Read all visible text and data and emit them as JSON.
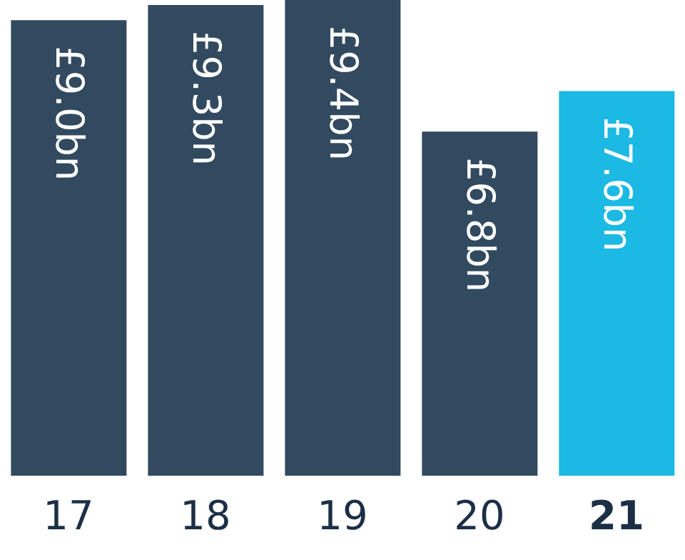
{
  "chart_data": {
    "type": "bar",
    "categories": [
      "17",
      "18",
      "19",
      "20",
      "21"
    ],
    "values": [
      9.0,
      9.3,
      9.4,
      6.8,
      7.6
    ],
    "colors": [
      "#324a5f",
      "#324a5f",
      "#324a5f",
      "#324a5f",
      "#1bb9e3"
    ],
    "value_labels": [
      "£9.0bn",
      "£9.3bn",
      "£9.4bn",
      "£6.8bn",
      "£7.6bn"
    ],
    "grid": false,
    "legend": false
  }
}
